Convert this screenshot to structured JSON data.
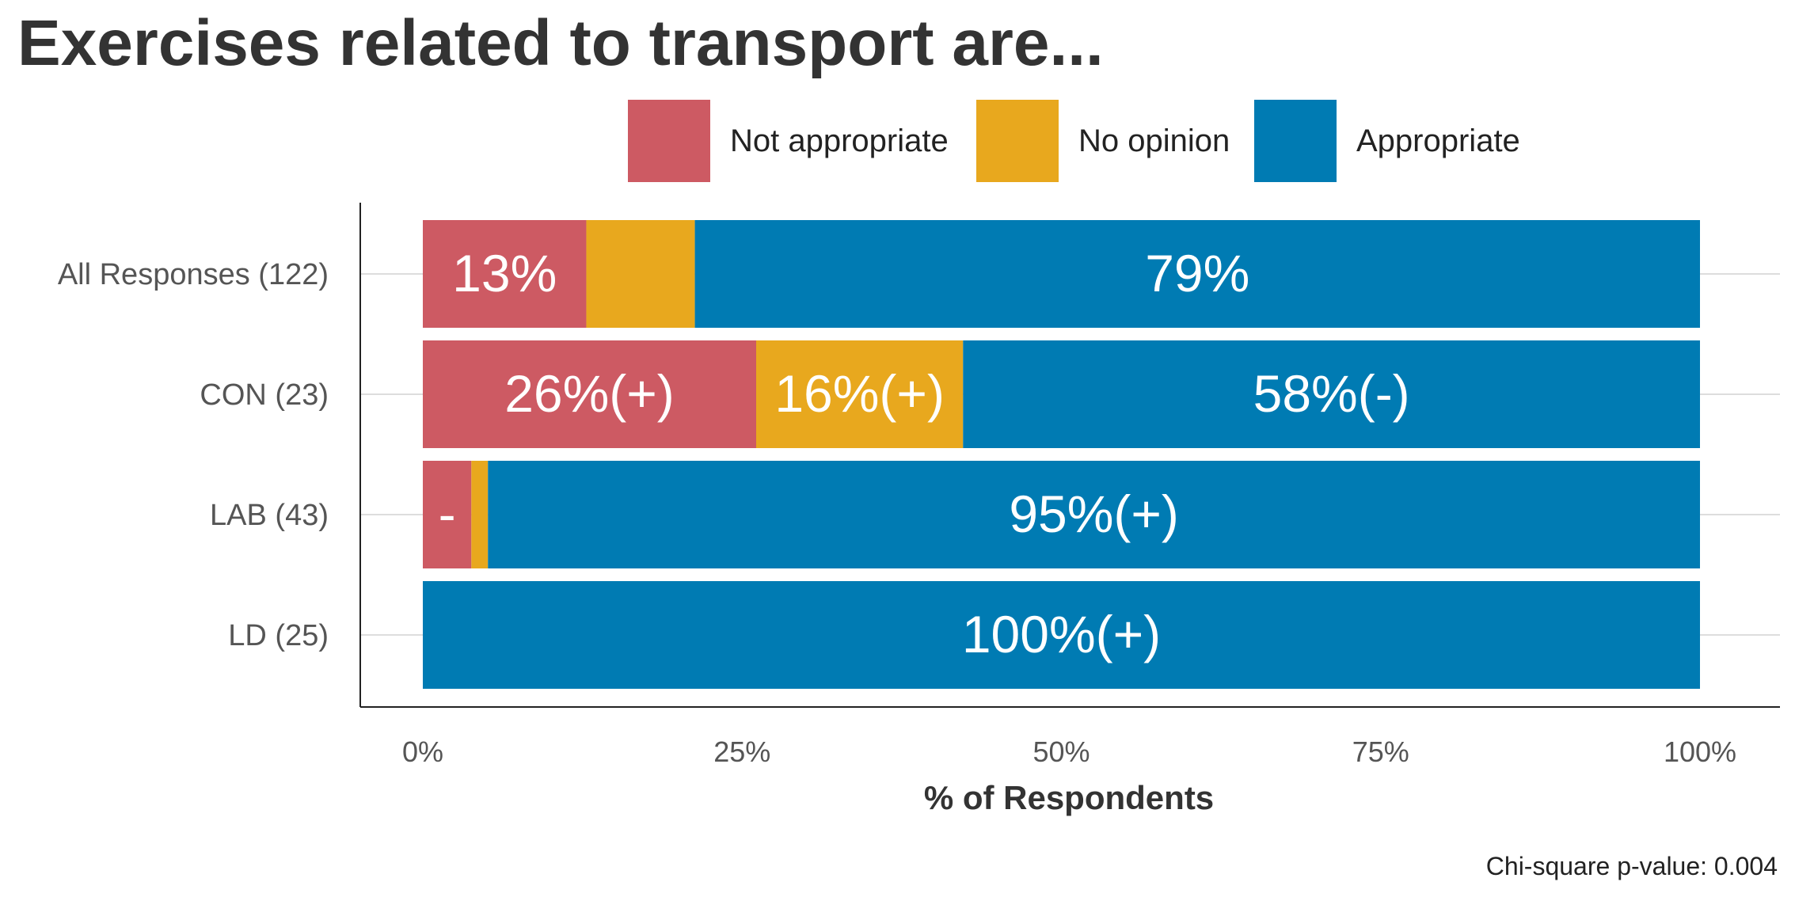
{
  "chart_data": {
    "type": "bar",
    "orientation": "horizontal",
    "stacked": true,
    "title": "Exercises related to transport are...",
    "xlabel": "% of Respondents",
    "ylabel": "",
    "xlim": [
      0,
      100
    ],
    "x_ticks": [
      "0%",
      "25%",
      "50%",
      "75%",
      "100%"
    ],
    "x_tick_values": [
      0,
      25,
      50,
      75,
      100
    ],
    "categories": [
      "All Responses (122)",
      "CON (23)",
      "LAB (43)",
      "LD (25)"
    ],
    "series": [
      {
        "name": "Not appropriate",
        "color": "#cd5a63",
        "values": [
          12.8,
          26.1,
          3.8,
          0
        ],
        "labels": [
          "13%",
          "26%(+)",
          "-",
          ""
        ]
      },
      {
        "name": "No opinion",
        "color": "#e8a81e",
        "values": [
          8.5,
          16.2,
          1.3,
          0
        ],
        "labels": [
          "",
          "16%(+)",
          "",
          ""
        ]
      },
      {
        "name": "Appropriate",
        "color": "#007bb3",
        "values": [
          78.7,
          57.7,
          94.9,
          100
        ],
        "labels": [
          "79%",
          "58%(-)",
          "95%(+)",
          "100%(+)"
        ]
      }
    ],
    "legend_position": "top",
    "grid": "horizontal",
    "footnote": "Chi-square p-value: 0.004"
  }
}
